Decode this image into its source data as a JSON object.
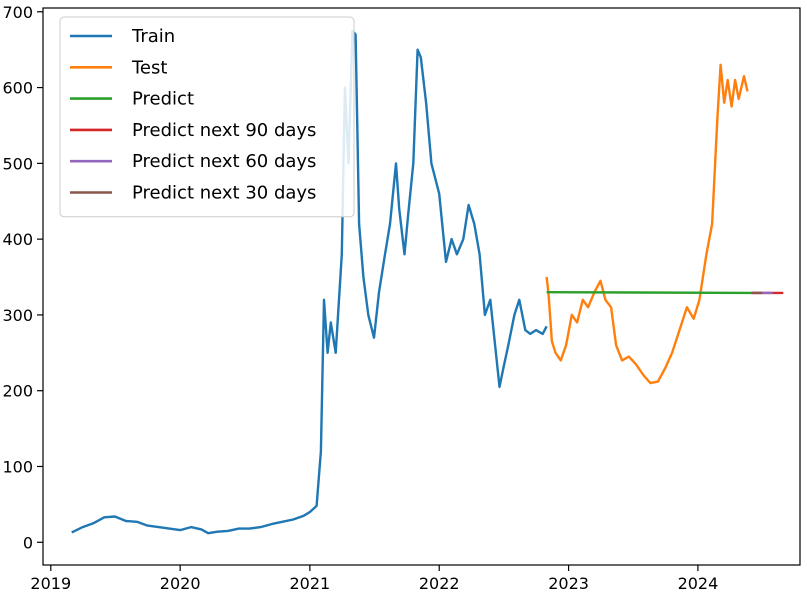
{
  "chart_data": {
    "type": "line",
    "title": "",
    "xlabel": "",
    "ylabel": "",
    "xlim": [
      "2018-12-10",
      "2024-10-15"
    ],
    "ylim": [
      -30,
      705
    ],
    "grid": false,
    "legend_placement": "top-left",
    "x_ticks": [
      "2019",
      "2020",
      "2021",
      "2022",
      "2023",
      "2024"
    ],
    "y_ticks": [
      0,
      100,
      200,
      300,
      400,
      500,
      600,
      700
    ],
    "series": [
      {
        "name": "Train",
        "color": "#1f77b4",
        "points": [
          [
            "2019-03-01",
            13
          ],
          [
            "2019-04-01",
            20
          ],
          [
            "2019-05-01",
            25
          ],
          [
            "2019-06-01",
            33
          ],
          [
            "2019-07-01",
            34
          ],
          [
            "2019-08-01",
            28
          ],
          [
            "2019-09-01",
            27
          ],
          [
            "2019-10-01",
            22
          ],
          [
            "2019-11-01",
            20
          ],
          [
            "2019-12-01",
            18
          ],
          [
            "2020-01-01",
            16
          ],
          [
            "2020-02-01",
            20
          ],
          [
            "2020-03-01",
            17
          ],
          [
            "2020-03-20",
            12
          ],
          [
            "2020-04-15",
            14
          ],
          [
            "2020-05-15",
            15
          ],
          [
            "2020-06-15",
            18
          ],
          [
            "2020-07-15",
            18
          ],
          [
            "2020-08-15",
            20
          ],
          [
            "2020-09-15",
            24
          ],
          [
            "2020-10-15",
            27
          ],
          [
            "2020-11-15",
            30
          ],
          [
            "2020-12-15",
            35
          ],
          [
            "2021-01-01",
            40
          ],
          [
            "2021-01-20",
            48
          ],
          [
            "2021-02-01",
            120
          ],
          [
            "2021-02-10",
            320
          ],
          [
            "2021-02-20",
            250
          ],
          [
            "2021-03-01",
            290
          ],
          [
            "2021-03-15",
            250
          ],
          [
            "2021-04-01",
            380
          ],
          [
            "2021-04-10",
            600
          ],
          [
            "2021-04-20",
            500
          ],
          [
            "2021-05-01",
            675
          ],
          [
            "2021-05-10",
            670
          ],
          [
            "2021-05-20",
            420
          ],
          [
            "2021-06-01",
            350
          ],
          [
            "2021-06-15",
            300
          ],
          [
            "2021-07-01",
            270
          ],
          [
            "2021-07-15",
            330
          ],
          [
            "2021-08-01",
            380
          ],
          [
            "2021-08-15",
            420
          ],
          [
            "2021-09-01",
            500
          ],
          [
            "2021-09-10",
            440
          ],
          [
            "2021-09-25",
            380
          ],
          [
            "2021-10-05",
            430
          ],
          [
            "2021-10-20",
            500
          ],
          [
            "2021-11-01",
            650
          ],
          [
            "2021-11-10",
            640
          ],
          [
            "2021-11-25",
            580
          ],
          [
            "2021-12-10",
            500
          ],
          [
            "2022-01-01",
            460
          ],
          [
            "2022-01-20",
            370
          ],
          [
            "2022-02-05",
            400
          ],
          [
            "2022-02-20",
            380
          ],
          [
            "2022-03-10",
            400
          ],
          [
            "2022-03-25",
            445
          ],
          [
            "2022-04-10",
            420
          ],
          [
            "2022-04-25",
            380
          ],
          [
            "2022-05-10",
            300
          ],
          [
            "2022-05-25",
            320
          ],
          [
            "2022-06-10",
            250
          ],
          [
            "2022-06-20",
            205
          ],
          [
            "2022-07-01",
            230
          ],
          [
            "2022-07-15",
            260
          ],
          [
            "2022-08-01",
            300
          ],
          [
            "2022-08-15",
            320
          ],
          [
            "2022-09-01",
            280
          ],
          [
            "2022-09-15",
            275
          ],
          [
            "2022-10-01",
            280
          ],
          [
            "2022-10-20",
            275
          ],
          [
            "2022-10-31",
            285
          ]
        ]
      },
      {
        "name": "Test",
        "color": "#ff7f0e",
        "points": [
          [
            "2022-10-31",
            350
          ],
          [
            "2022-11-05",
            330
          ],
          [
            "2022-11-15",
            265
          ],
          [
            "2022-11-25",
            250
          ],
          [
            "2022-12-10",
            240
          ],
          [
            "2022-12-25",
            260
          ],
          [
            "2023-01-10",
            300
          ],
          [
            "2023-01-25",
            290
          ],
          [
            "2023-02-10",
            320
          ],
          [
            "2023-02-25",
            310
          ],
          [
            "2023-03-15",
            330
          ],
          [
            "2023-04-01",
            345
          ],
          [
            "2023-04-15",
            320
          ],
          [
            "2023-05-01",
            310
          ],
          [
            "2023-05-15",
            260
          ],
          [
            "2023-06-01",
            240
          ],
          [
            "2023-06-20",
            245
          ],
          [
            "2023-07-10",
            235
          ],
          [
            "2023-08-01",
            220
          ],
          [
            "2023-08-20",
            210
          ],
          [
            "2023-09-10",
            212
          ],
          [
            "2023-10-01",
            230
          ],
          [
            "2023-10-20",
            250
          ],
          [
            "2023-11-10",
            280
          ],
          [
            "2023-12-01",
            310
          ],
          [
            "2023-12-20",
            295
          ],
          [
            "2024-01-05",
            320
          ],
          [
            "2024-01-25",
            380
          ],
          [
            "2024-02-10",
            420
          ],
          [
            "2024-02-25",
            560
          ],
          [
            "2024-03-05",
            630
          ],
          [
            "2024-03-15",
            580
          ],
          [
            "2024-03-25",
            610
          ],
          [
            "2024-04-05",
            575
          ],
          [
            "2024-04-15",
            610
          ],
          [
            "2024-04-25",
            585
          ],
          [
            "2024-05-10",
            615
          ],
          [
            "2024-05-20",
            595
          ]
        ]
      },
      {
        "name": "Predict",
        "color": "#2ca02c",
        "points": [
          [
            "2022-10-31",
            330
          ],
          [
            "2024-05-31",
            329
          ]
        ]
      },
      {
        "name": "Predict next 90 days",
        "color": "#d62728",
        "points": [
          [
            "2024-05-31",
            329
          ],
          [
            "2024-08-29",
            329
          ]
        ]
      },
      {
        "name": "Predict next 60 days",
        "color": "#9467bd",
        "points": [
          [
            "2024-05-31",
            329
          ],
          [
            "2024-07-30",
            329
          ]
        ]
      },
      {
        "name": "Predict next 30 days",
        "color": "#8c564b",
        "points": [
          [
            "2024-05-31",
            329
          ],
          [
            "2024-06-30",
            329
          ]
        ]
      }
    ]
  }
}
